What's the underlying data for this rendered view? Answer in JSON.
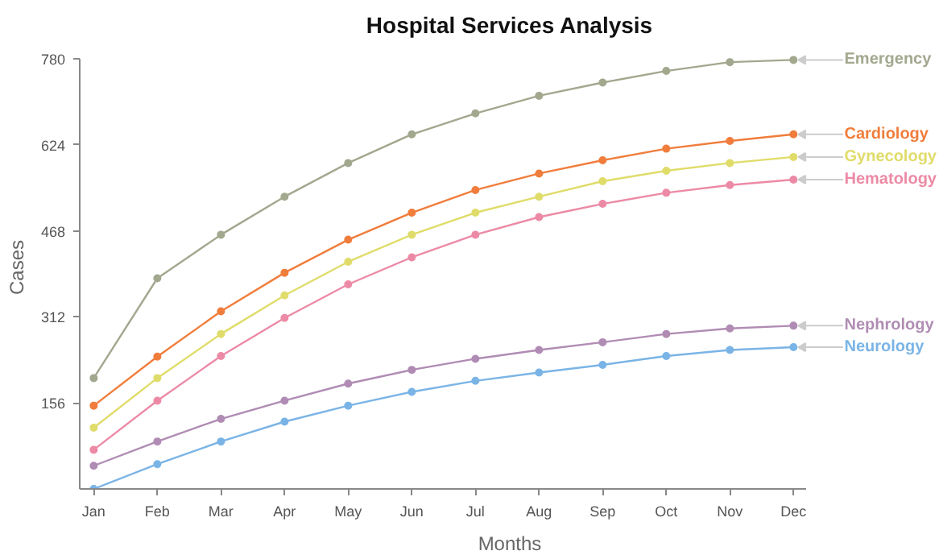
{
  "chart_data": {
    "type": "line",
    "title": "Hospital Services Analysis",
    "xlabel": "Months",
    "ylabel": "Cases",
    "categories": [
      "Jan",
      "Feb",
      "Mar",
      "Apr",
      "May",
      "Jun",
      "Jul",
      "Aug",
      "Sep",
      "Oct",
      "Nov",
      "Dec"
    ],
    "ylim": [
      0,
      780
    ],
    "yticks": [
      156,
      312,
      468,
      624,
      780
    ],
    "grid": false,
    "legend": false,
    "marker": "circle",
    "line_style": "solid",
    "series": [
      {
        "name": "Emergency",
        "color": "#a2a88e",
        "values": [
          201,
          382,
          461,
          530,
          591,
          643,
          681,
          713,
          737,
          758,
          774,
          778
        ]
      },
      {
        "name": "Cardiology",
        "color": "#f07d3c",
        "values": [
          151,
          240,
          322,
          392,
          452,
          501,
          542,
          572,
          596,
          617,
          631,
          643
        ]
      },
      {
        "name": "Gynecology",
        "color": "#e0dc6a",
        "values": [
          111,
          201,
          281,
          351,
          412,
          461,
          501,
          530,
          558,
          577,
          591,
          602
        ]
      },
      {
        "name": "Hematology",
        "color": "#ec8aa6",
        "values": [
          71,
          160,
          241,
          310,
          371,
          420,
          461,
          493,
          517,
          537,
          551,
          561
        ]
      },
      {
        "name": "Nephrology",
        "color": "#b08cb4",
        "values": [
          42,
          86,
          127,
          160,
          191,
          216,
          236,
          252,
          266,
          281,
          291,
          296
        ]
      },
      {
        "name": "Neurology",
        "color": "#7ab4e6",
        "values": [
          0,
          45,
          86,
          122,
          151,
          176,
          196,
          211,
          225,
          241,
          252,
          257
        ]
      }
    ]
  }
}
